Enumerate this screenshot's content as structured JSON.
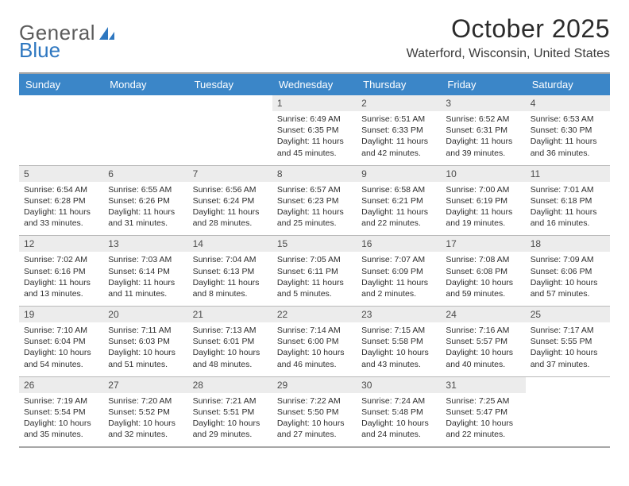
{
  "logo": {
    "part1": "General",
    "part2": "Blue"
  },
  "title": "October 2025",
  "location": "Waterford, Wisconsin, United States",
  "colors": {
    "header_bg": "#3b86c8",
    "header_text": "#ffffff",
    "daynum_bg": "#ececec",
    "border": "#b9b9b9",
    "outer_border": "#a7a7a7",
    "logo_blue": "#2e77c0",
    "logo_gray": "#5c5c5c"
  },
  "weekdays": [
    "Sunday",
    "Monday",
    "Tuesday",
    "Wednesday",
    "Thursday",
    "Friday",
    "Saturday"
  ],
  "grid": [
    [
      null,
      null,
      null,
      {
        "n": "1",
        "sr": "Sunrise: 6:49 AM",
        "ss": "Sunset: 6:35 PM",
        "dl": "Daylight: 11 hours and 45 minutes."
      },
      {
        "n": "2",
        "sr": "Sunrise: 6:51 AM",
        "ss": "Sunset: 6:33 PM",
        "dl": "Daylight: 11 hours and 42 minutes."
      },
      {
        "n": "3",
        "sr": "Sunrise: 6:52 AM",
        "ss": "Sunset: 6:31 PM",
        "dl": "Daylight: 11 hours and 39 minutes."
      },
      {
        "n": "4",
        "sr": "Sunrise: 6:53 AM",
        "ss": "Sunset: 6:30 PM",
        "dl": "Daylight: 11 hours and 36 minutes."
      }
    ],
    [
      {
        "n": "5",
        "sr": "Sunrise: 6:54 AM",
        "ss": "Sunset: 6:28 PM",
        "dl": "Daylight: 11 hours and 33 minutes."
      },
      {
        "n": "6",
        "sr": "Sunrise: 6:55 AM",
        "ss": "Sunset: 6:26 PM",
        "dl": "Daylight: 11 hours and 31 minutes."
      },
      {
        "n": "7",
        "sr": "Sunrise: 6:56 AM",
        "ss": "Sunset: 6:24 PM",
        "dl": "Daylight: 11 hours and 28 minutes."
      },
      {
        "n": "8",
        "sr": "Sunrise: 6:57 AM",
        "ss": "Sunset: 6:23 PM",
        "dl": "Daylight: 11 hours and 25 minutes."
      },
      {
        "n": "9",
        "sr": "Sunrise: 6:58 AM",
        "ss": "Sunset: 6:21 PM",
        "dl": "Daylight: 11 hours and 22 minutes."
      },
      {
        "n": "10",
        "sr": "Sunrise: 7:00 AM",
        "ss": "Sunset: 6:19 PM",
        "dl": "Daylight: 11 hours and 19 minutes."
      },
      {
        "n": "11",
        "sr": "Sunrise: 7:01 AM",
        "ss": "Sunset: 6:18 PM",
        "dl": "Daylight: 11 hours and 16 minutes."
      }
    ],
    [
      {
        "n": "12",
        "sr": "Sunrise: 7:02 AM",
        "ss": "Sunset: 6:16 PM",
        "dl": "Daylight: 11 hours and 13 minutes."
      },
      {
        "n": "13",
        "sr": "Sunrise: 7:03 AM",
        "ss": "Sunset: 6:14 PM",
        "dl": "Daylight: 11 hours and 11 minutes."
      },
      {
        "n": "14",
        "sr": "Sunrise: 7:04 AM",
        "ss": "Sunset: 6:13 PM",
        "dl": "Daylight: 11 hours and 8 minutes."
      },
      {
        "n": "15",
        "sr": "Sunrise: 7:05 AM",
        "ss": "Sunset: 6:11 PM",
        "dl": "Daylight: 11 hours and 5 minutes."
      },
      {
        "n": "16",
        "sr": "Sunrise: 7:07 AM",
        "ss": "Sunset: 6:09 PM",
        "dl": "Daylight: 11 hours and 2 minutes."
      },
      {
        "n": "17",
        "sr": "Sunrise: 7:08 AM",
        "ss": "Sunset: 6:08 PM",
        "dl": "Daylight: 10 hours and 59 minutes."
      },
      {
        "n": "18",
        "sr": "Sunrise: 7:09 AM",
        "ss": "Sunset: 6:06 PM",
        "dl": "Daylight: 10 hours and 57 minutes."
      }
    ],
    [
      {
        "n": "19",
        "sr": "Sunrise: 7:10 AM",
        "ss": "Sunset: 6:04 PM",
        "dl": "Daylight: 10 hours and 54 minutes."
      },
      {
        "n": "20",
        "sr": "Sunrise: 7:11 AM",
        "ss": "Sunset: 6:03 PM",
        "dl": "Daylight: 10 hours and 51 minutes."
      },
      {
        "n": "21",
        "sr": "Sunrise: 7:13 AM",
        "ss": "Sunset: 6:01 PM",
        "dl": "Daylight: 10 hours and 48 minutes."
      },
      {
        "n": "22",
        "sr": "Sunrise: 7:14 AM",
        "ss": "Sunset: 6:00 PM",
        "dl": "Daylight: 10 hours and 46 minutes."
      },
      {
        "n": "23",
        "sr": "Sunrise: 7:15 AM",
        "ss": "Sunset: 5:58 PM",
        "dl": "Daylight: 10 hours and 43 minutes."
      },
      {
        "n": "24",
        "sr": "Sunrise: 7:16 AM",
        "ss": "Sunset: 5:57 PM",
        "dl": "Daylight: 10 hours and 40 minutes."
      },
      {
        "n": "25",
        "sr": "Sunrise: 7:17 AM",
        "ss": "Sunset: 5:55 PM",
        "dl": "Daylight: 10 hours and 37 minutes."
      }
    ],
    [
      {
        "n": "26",
        "sr": "Sunrise: 7:19 AM",
        "ss": "Sunset: 5:54 PM",
        "dl": "Daylight: 10 hours and 35 minutes."
      },
      {
        "n": "27",
        "sr": "Sunrise: 7:20 AM",
        "ss": "Sunset: 5:52 PM",
        "dl": "Daylight: 10 hours and 32 minutes."
      },
      {
        "n": "28",
        "sr": "Sunrise: 7:21 AM",
        "ss": "Sunset: 5:51 PM",
        "dl": "Daylight: 10 hours and 29 minutes."
      },
      {
        "n": "29",
        "sr": "Sunrise: 7:22 AM",
        "ss": "Sunset: 5:50 PM",
        "dl": "Daylight: 10 hours and 27 minutes."
      },
      {
        "n": "30",
        "sr": "Sunrise: 7:24 AM",
        "ss": "Sunset: 5:48 PM",
        "dl": "Daylight: 10 hours and 24 minutes."
      },
      {
        "n": "31",
        "sr": "Sunrise: 7:25 AM",
        "ss": "Sunset: 5:47 PM",
        "dl": "Daylight: 10 hours and 22 minutes."
      },
      null
    ]
  ]
}
